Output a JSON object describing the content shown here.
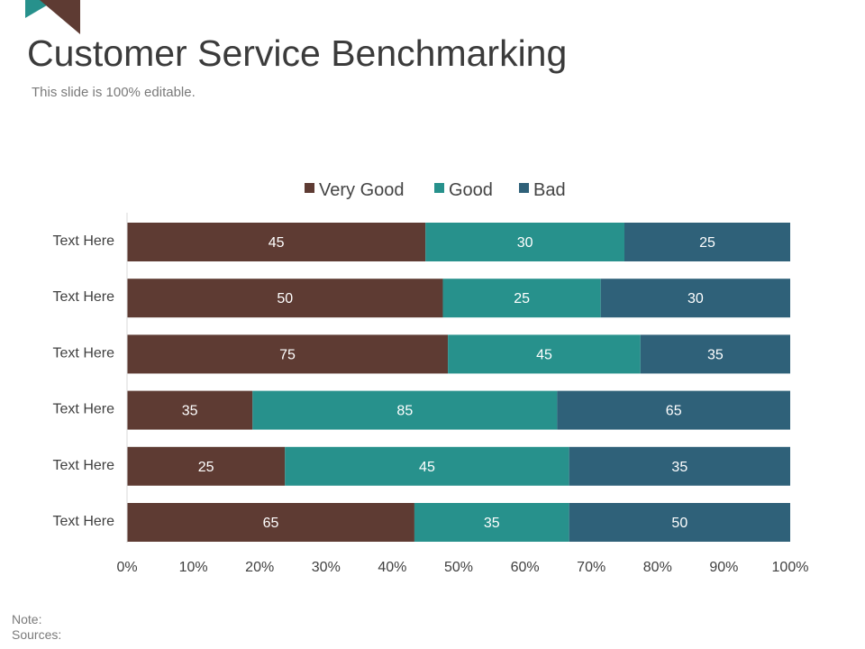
{
  "slide": {
    "title": "Customer Service Benchmarking",
    "subtitle": "This slide is 100% editable.",
    "note_label": "Note:",
    "sources_label": "Sources:"
  },
  "colors": {
    "very_good": "#5e3b33",
    "good": "#27918c",
    "bad": "#2f6179",
    "corner_teal": "#27918c",
    "corner_brown": "#5e3b33"
  },
  "chart_data": {
    "type": "bar",
    "orientation": "horizontal",
    "stacked": "percent",
    "title": "",
    "xlabel": "",
    "ylabel": "",
    "categories": [
      "Text Here",
      "Text Here",
      "Text Here",
      "Text Here",
      "Text Here",
      "Text Here"
    ],
    "series": [
      {
        "name": "Very Good",
        "values": [
          45,
          50,
          75,
          35,
          25,
          65
        ]
      },
      {
        "name": "Good",
        "values": [
          30,
          25,
          45,
          85,
          45,
          35
        ]
      },
      {
        "name": "Bad",
        "values": [
          25,
          30,
          35,
          65,
          35,
          50
        ]
      }
    ],
    "x_ticks": [
      "0%",
      "10%",
      "20%",
      "30%",
      "40%",
      "50%",
      "60%",
      "70%",
      "80%",
      "90%",
      "100%"
    ],
    "xlim": [
      0,
      100
    ],
    "grid": false,
    "legend_position": "top-center"
  }
}
